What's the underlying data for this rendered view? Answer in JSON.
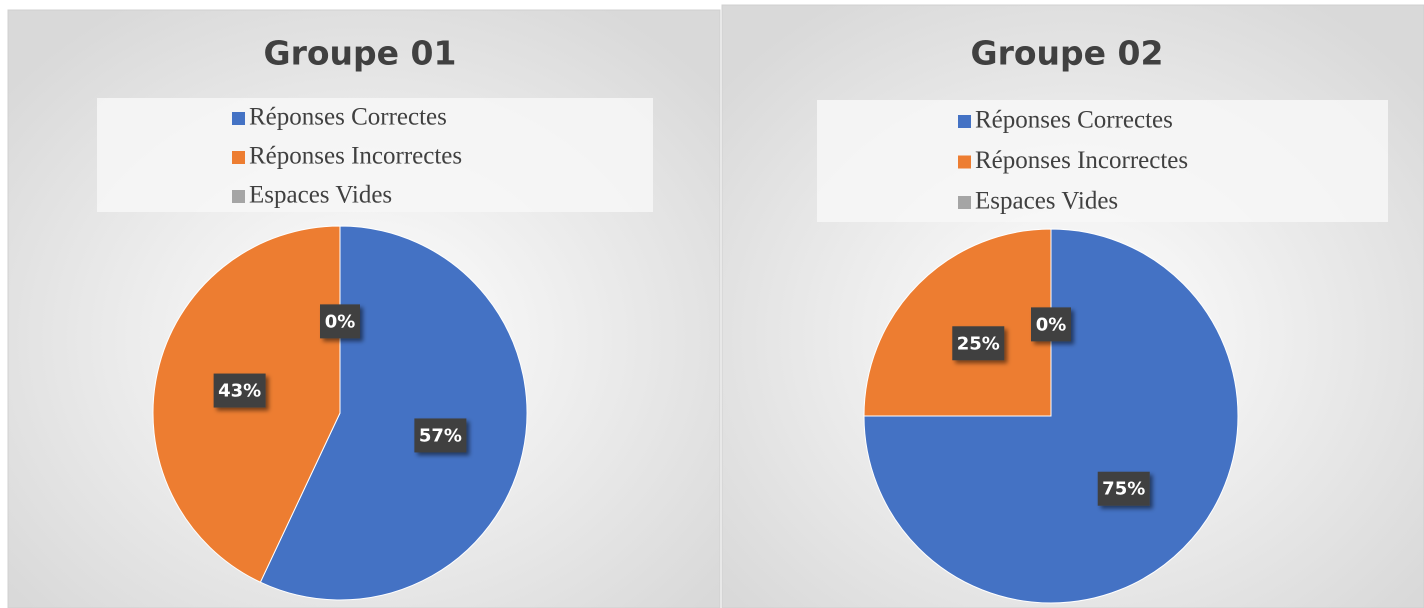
{
  "chart_data": [
    {
      "type": "pie",
      "title": "Groupe 01",
      "categories": [
        "Réponses Correctes",
        "Réponses Incorrectes",
        "Espaces Vides"
      ],
      "values": [
        57,
        43,
        0
      ],
      "value_labels": [
        "57%",
        "43%",
        "0%"
      ],
      "colors": [
        "#4472c4",
        "#ed7d31",
        "#a5a5a5"
      ],
      "legend": "top"
    },
    {
      "type": "pie",
      "title": "Groupe 02",
      "categories": [
        "Réponses Correctes",
        "Réponses Incorrectes",
        "Espaces Vides"
      ],
      "values": [
        75,
        25,
        0
      ],
      "value_labels": [
        "75%",
        "25%",
        "0%"
      ],
      "colors": [
        "#4472c4",
        "#ed7d31",
        "#a5a5a5"
      ],
      "legend": "top"
    }
  ]
}
